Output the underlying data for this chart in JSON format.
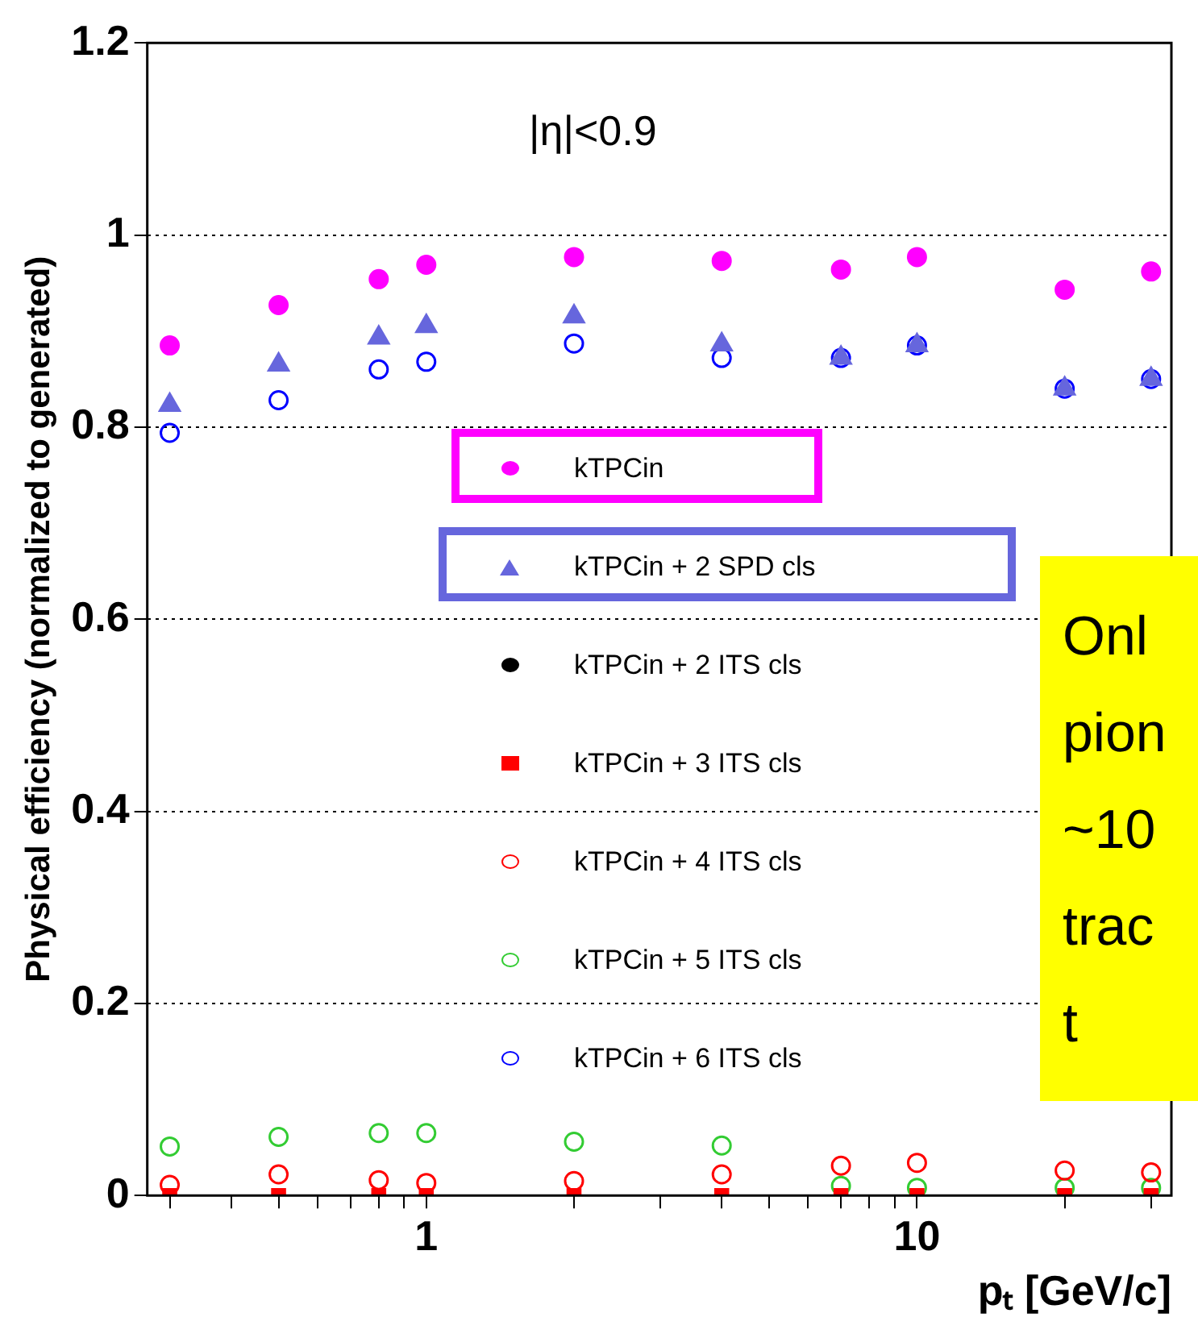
{
  "chart_data": {
    "type": "scatter",
    "xlabel": "pₜ [GeV/c]",
    "ylabel": "Physical efficiency (normalized to generated)",
    "annotations": [
      "|η|<0.9",
      "Onl\npion\n~10\ntrac\nt"
    ],
    "x": [
      0.3,
      0.5,
      0.8,
      1,
      2,
      4,
      7,
      10,
      20,
      30
    ],
    "series": [
      {
        "name": "kTPCin",
        "color": "#ff00ff",
        "marker": "circle",
        "values": [
          0.885,
          0.927,
          0.954,
          0.969,
          0.977,
          0.973,
          0.964,
          0.977,
          0.943,
          0.962
        ]
      },
      {
        "name": "kTPCin + 2 SPD cls",
        "color": "#6666dd",
        "marker": "triangle",
        "values": [
          0.823,
          0.865,
          0.893,
          0.905,
          0.915,
          0.886,
          0.872,
          0.885,
          0.84,
          0.85
        ]
      },
      {
        "name": "kTPCin + 2 ITS cls",
        "color": "#000000",
        "marker": "circle",
        "values": [
          null,
          null,
          null,
          null,
          null,
          null,
          null,
          null,
          null,
          null
        ]
      },
      {
        "name": "kTPCin + 3 ITS cls",
        "color": "#ff0000",
        "marker": "square",
        "values": [
          0,
          0,
          0,
          0,
          0,
          0,
          0,
          0,
          0,
          0
        ]
      },
      {
        "name": "kTPCin + 4 ITS cls",
        "color": "#ff0000",
        "marker": "circle",
        "values": [
          0.011,
          0.022,
          0.016,
          0.013,
          0.015,
          0.022,
          0.031,
          0.034,
          0.026,
          0.024
        ]
      },
      {
        "name": "kTPCin + 5 ITS cls",
        "color": "#33cc33",
        "marker": "circle",
        "values": [
          0.051,
          0.061,
          0.065,
          0.065,
          0.056,
          0.052,
          0.01,
          0.008,
          0.008,
          0.008
        ]
      },
      {
        "name": "kTPCin + 6 ITS cls",
        "color": "#0000ff",
        "marker": "circle",
        "values": [
          0.794,
          0.828,
          0.86,
          0.868,
          0.887,
          0.872,
          0.872,
          0.885,
          0.84,
          0.85
        ]
      }
    ],
    "log": "x",
    "xlim": [
      0.27,
      33
    ],
    "xticks": [
      {
        "value": 0.3,
        "label": null
      },
      {
        "value": 0.4,
        "label": null
      },
      {
        "value": 0.5,
        "label": null
      },
      {
        "value": 0.6,
        "label": null
      },
      {
        "value": 0.7,
        "label": null
      },
      {
        "value": 0.8,
        "label": null
      },
      {
        "value": 0.9,
        "label": null
      },
      1,
      {
        "value": 2,
        "label": null
      },
      {
        "value": 3,
        "label": null
      },
      {
        "value": 4,
        "label": null
      },
      {
        "value": 5,
        "label": null
      },
      {
        "value": 6,
        "label": null
      },
      {
        "value": 7,
        "label": null
      },
      {
        "value": 8,
        "label": null
      },
      {
        "value": 9,
        "label": null
      },
      10,
      {
        "value": 20,
        "label": null
      },
      {
        "value": 30,
        "label": null
      }
    ],
    "ylim": [
      0,
      1.2
    ],
    "yticks": [
      0,
      0.2,
      0.4,
      0.6,
      0.8,
      1,
      1.2
    ],
    "grid": "y",
    "legend": "center"
  }
}
